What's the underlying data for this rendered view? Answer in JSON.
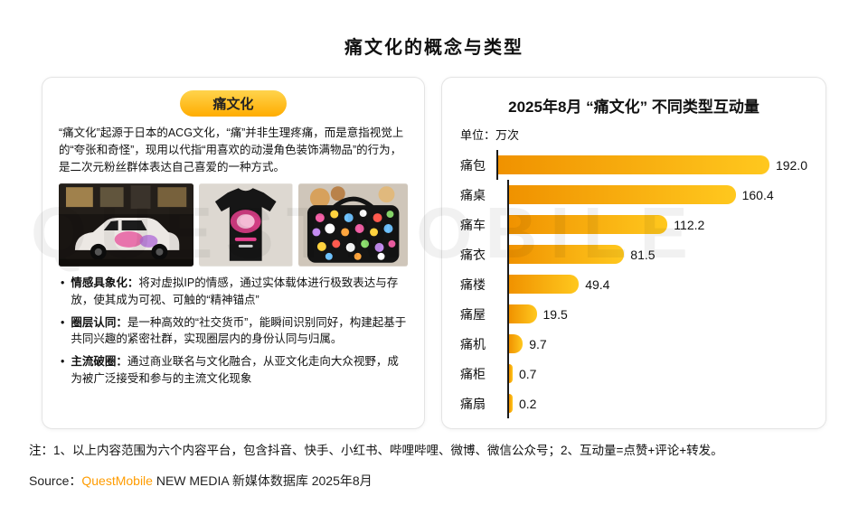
{
  "page": {
    "title": "痛文化的概念与类型"
  },
  "left_panel": {
    "badge": "痛文化",
    "intro": "“痛文化”起源于日本的ACG文化，“痛”并非生理疼痛，而是意指视觉上的“夸张和奇怪”，现用以代指“用喜欢的动漫角色装饰满物品”的行为，是二次元粉丝群体表达自己喜爱的一种方式。",
    "images": [
      "itasha-car-photo",
      "pain-tshirt-photo",
      "ita-bag-photo"
    ],
    "bullets": [
      {
        "term": "情感具象化：",
        "desc": "将对虚拟IP的情感，通过实体载体进行极致表达与存放，使其成为可视、可触的“精神锚点”"
      },
      {
        "term": "圈层认同：",
        "desc": "是一种高效的“社交货币”，能瞬间识别同好，构建起基于共同兴趣的紧密社群，实现圈层内的身份认同与归属。"
      },
      {
        "term": "主流破圈：",
        "desc": "通过商业联名与文化融合，从亚文化走向大众视野，成为被广泛接受和参与的主流文化现象"
      }
    ]
  },
  "chart_data": {
    "type": "bar",
    "orientation": "horizontal",
    "title": "2025年8月 “痛文化” 不同类型互动量",
    "unit_label": "单位：万次",
    "unit": "万次",
    "categories": [
      "痛包",
      "痛桌",
      "痛车",
      "痛衣",
      "痛楼",
      "痛屋",
      "痛机",
      "痛柜",
      "痛扇"
    ],
    "values": [
      192.0,
      160.4,
      112.2,
      81.5,
      49.4,
      19.5,
      9.7,
      0.7,
      0.2
    ],
    "xlim": [
      0,
      200
    ],
    "legend": "none",
    "grid": false
  },
  "footer": {
    "note": "注：1、以上内容范围为六个内容平台，包含抖音、快手、小红书、哔哩哔哩、微博、微信公众号；2、互动量=点赞+评论+转发。",
    "source_prefix": "Source：",
    "source_brand": "QuestMobile",
    "source_rest": " NEW MEDIA 新媒体数据库 2025年8月"
  },
  "watermark": "QUESTMOBILE",
  "ui": {
    "bullet": "•"
  },
  "colors": {
    "accent": "#FFB400",
    "bar_gradient_start": "#F09200",
    "bar_gradient_end": "#FFC81E",
    "brand_orange": "#FF9C00"
  }
}
